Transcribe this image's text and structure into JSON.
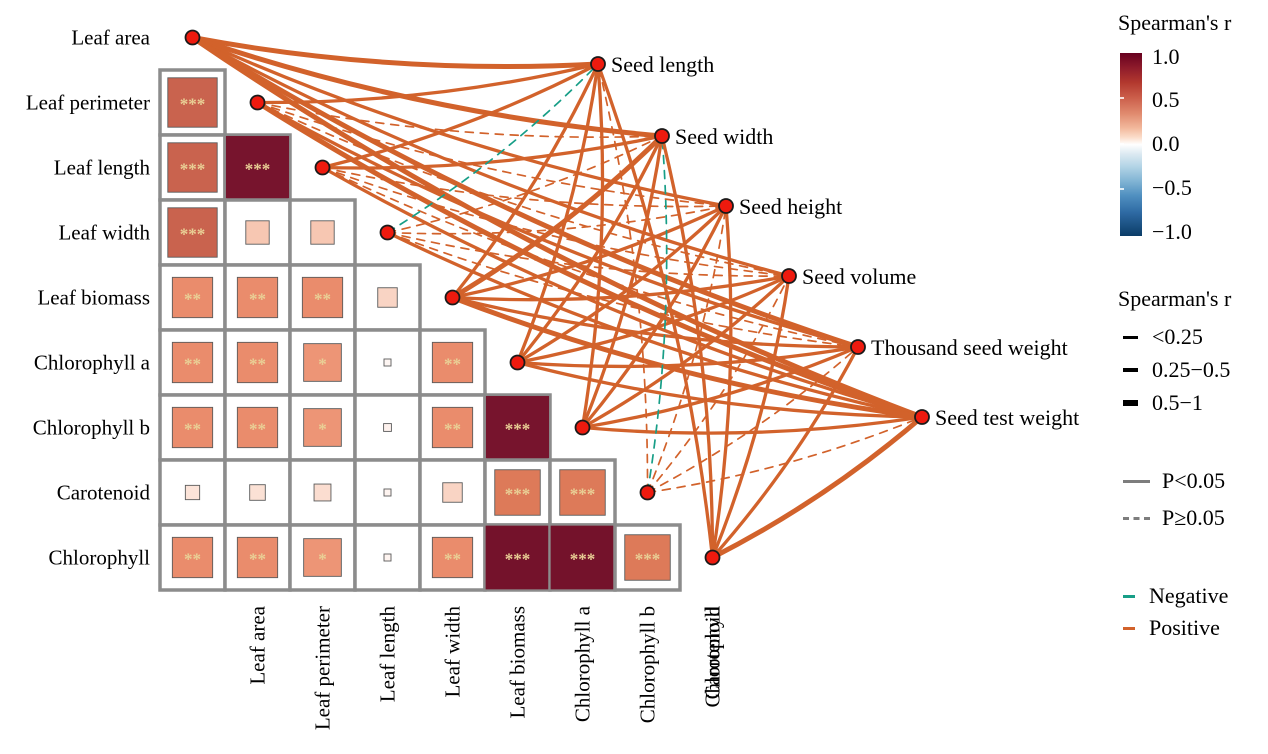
{
  "chart_data": {
    "type": "correlation-heatmap-network",
    "title": "",
    "leaf_traits": [
      "Leaf area",
      "Leaf perimeter",
      "Leaf length",
      "Leaf width",
      "Leaf biomass",
      "Chlorophyll a",
      "Chlorophyll b",
      "Carotenoid",
      "Chlorophyll"
    ],
    "seed_traits": [
      "Seed length",
      "Seed width",
      "Seed height",
      "Seed volume",
      "Thousand seed weight",
      "Seed test weight"
    ],
    "matrix": {
      "rows": [
        {
          "row": "Leaf perimeter",
          "cells": [
            {
              "col": "Leaf area",
              "r": 0.76,
              "sig": "***"
            }
          ]
        },
        {
          "row": "Leaf length",
          "cells": [
            {
              "col": "Leaf area",
              "r": 0.76,
              "sig": "***"
            },
            {
              "col": "Leaf perimeter",
              "r": 0.97,
              "sig": "***"
            }
          ]
        },
        {
          "row": "Leaf width",
          "cells": [
            {
              "col": "Leaf area",
              "r": 0.76,
              "sig": "***"
            },
            {
              "col": "Leaf perimeter",
              "r": 0.36,
              "sig": ""
            },
            {
              "col": "Leaf length",
              "r": 0.36,
              "sig": ""
            }
          ]
        },
        {
          "row": "Leaf biomass",
          "cells": [
            {
              "col": "Leaf area",
              "r": 0.62,
              "sig": "**"
            },
            {
              "col": "Leaf perimeter",
              "r": 0.62,
              "sig": "**"
            },
            {
              "col": "Leaf length",
              "r": 0.62,
              "sig": "**"
            },
            {
              "col": "Leaf width",
              "r": 0.3,
              "sig": ""
            }
          ]
        },
        {
          "row": "Chlorophyll a",
          "cells": [
            {
              "col": "Leaf area",
              "r": 0.62,
              "sig": "**"
            },
            {
              "col": "Leaf perimeter",
              "r": 0.62,
              "sig": "**"
            },
            {
              "col": "Leaf length",
              "r": 0.58,
              "sig": "*"
            },
            {
              "col": "Leaf width",
              "r": 0.08,
              "sig": ""
            },
            {
              "col": "Leaf biomass",
              "r": 0.62,
              "sig": "**"
            }
          ]
        },
        {
          "row": "Chlorophyll b",
          "cells": [
            {
              "col": "Leaf area",
              "r": 0.62,
              "sig": "**"
            },
            {
              "col": "Leaf perimeter",
              "r": 0.62,
              "sig": "**"
            },
            {
              "col": "Leaf length",
              "r": 0.58,
              "sig": "*"
            },
            {
              "col": "Leaf width",
              "r": 0.12,
              "sig": ""
            },
            {
              "col": "Leaf biomass",
              "r": 0.62,
              "sig": "**"
            },
            {
              "col": "Chlorophyll a",
              "r": 0.97,
              "sig": "***"
            }
          ]
        },
        {
          "row": "Carotenoid",
          "cells": [
            {
              "col": "Leaf area",
              "r": 0.22,
              "sig": ""
            },
            {
              "col": "Leaf perimeter",
              "r": 0.24,
              "sig": ""
            },
            {
              "col": "Leaf length",
              "r": 0.26,
              "sig": ""
            },
            {
              "col": "Leaf width",
              "r": 0.1,
              "sig": ""
            },
            {
              "col": "Leaf biomass",
              "r": 0.3,
              "sig": ""
            },
            {
              "col": "Chlorophyll a",
              "r": 0.7,
              "sig": "***"
            },
            {
              "col": "Chlorophyll b",
              "r": 0.7,
              "sig": "***"
            }
          ]
        },
        {
          "row": "Chlorophyll",
          "cells": [
            {
              "col": "Leaf area",
              "r": 0.62,
              "sig": "**"
            },
            {
              "col": "Leaf perimeter",
              "r": 0.62,
              "sig": "**"
            },
            {
              "col": "Leaf length",
              "r": 0.58,
              "sig": "*"
            },
            {
              "col": "Leaf width",
              "r": 0.1,
              "sig": ""
            },
            {
              "col": "Leaf biomass",
              "r": 0.62,
              "sig": "**"
            },
            {
              "col": "Chlorophyll a",
              "r": 0.98,
              "sig": "***"
            },
            {
              "col": "Chlorophyll b",
              "r": 0.98,
              "sig": "***"
            },
            {
              "col": "Carotenoid",
              "r": 0.7,
              "sig": "***"
            }
          ]
        }
      ]
    },
    "links": [
      {
        "leaf": "Leaf area",
        "seed": "Seed length",
        "sign": "pos",
        "p": "sig",
        "width": "thick"
      },
      {
        "leaf": "Leaf area",
        "seed": "Seed width",
        "sign": "pos",
        "p": "sig",
        "width": "thick"
      },
      {
        "leaf": "Leaf area",
        "seed": "Seed height",
        "sign": "pos",
        "p": "sig",
        "width": "medium"
      },
      {
        "leaf": "Leaf area",
        "seed": "Seed volume",
        "sign": "pos",
        "p": "sig",
        "width": "medium"
      },
      {
        "leaf": "Leaf area",
        "seed": "Thousand seed weight",
        "sign": "pos",
        "p": "sig",
        "width": "thick"
      },
      {
        "leaf": "Leaf area",
        "seed": "Seed test weight",
        "sign": "pos",
        "p": "sig",
        "width": "thick"
      },
      {
        "leaf": "Leaf perimeter",
        "seed": "Seed length",
        "sign": "pos",
        "p": "sig",
        "width": "medium"
      },
      {
        "leaf": "Leaf perimeter",
        "seed": "Seed width",
        "sign": "pos",
        "p": "ns",
        "width": "thin"
      },
      {
        "leaf": "Leaf perimeter",
        "seed": "Seed height",
        "sign": "pos",
        "p": "ns",
        "width": "thin"
      },
      {
        "leaf": "Leaf perimeter",
        "seed": "Seed volume",
        "sign": "pos",
        "p": "ns",
        "width": "thin"
      },
      {
        "leaf": "Leaf perimeter",
        "seed": "Thousand seed weight",
        "sign": "pos",
        "p": "sig",
        "width": "medium"
      },
      {
        "leaf": "Leaf perimeter",
        "seed": "Seed test weight",
        "sign": "pos",
        "p": "sig",
        "width": "thick"
      },
      {
        "leaf": "Leaf length",
        "seed": "Seed length",
        "sign": "pos",
        "p": "sig",
        "width": "medium"
      },
      {
        "leaf": "Leaf length",
        "seed": "Seed width",
        "sign": "pos",
        "p": "sig",
        "width": "medium"
      },
      {
        "leaf": "Leaf length",
        "seed": "Seed height",
        "sign": "pos",
        "p": "ns",
        "width": "thin"
      },
      {
        "leaf": "Leaf length",
        "seed": "Seed volume",
        "sign": "pos",
        "p": "ns",
        "width": "thin"
      },
      {
        "leaf": "Leaf length",
        "seed": "Thousand seed weight",
        "sign": "pos",
        "p": "ns",
        "width": "thin"
      },
      {
        "leaf": "Leaf length",
        "seed": "Seed test weight",
        "sign": "pos",
        "p": "sig",
        "width": "medium"
      },
      {
        "leaf": "Leaf width",
        "seed": "Seed length",
        "sign": "neg",
        "p": "ns",
        "width": "thin"
      },
      {
        "leaf": "Leaf width",
        "seed": "Seed width",
        "sign": "pos",
        "p": "ns",
        "width": "thin"
      },
      {
        "leaf": "Leaf width",
        "seed": "Seed height",
        "sign": "pos",
        "p": "ns",
        "width": "thin"
      },
      {
        "leaf": "Leaf width",
        "seed": "Seed volume",
        "sign": "pos",
        "p": "ns",
        "width": "thin"
      },
      {
        "leaf": "Leaf width",
        "seed": "Thousand seed weight",
        "sign": "pos",
        "p": "ns",
        "width": "thin"
      },
      {
        "leaf": "Leaf width",
        "seed": "Seed test weight",
        "sign": "pos",
        "p": "sig",
        "width": "medium"
      },
      {
        "leaf": "Leaf biomass",
        "seed": "Seed length",
        "sign": "pos",
        "p": "sig",
        "width": "medium"
      },
      {
        "leaf": "Leaf biomass",
        "seed": "Seed width",
        "sign": "pos",
        "p": "sig",
        "width": "thick"
      },
      {
        "leaf": "Leaf biomass",
        "seed": "Seed height",
        "sign": "pos",
        "p": "sig",
        "width": "medium"
      },
      {
        "leaf": "Leaf biomass",
        "seed": "Seed volume",
        "sign": "pos",
        "p": "sig",
        "width": "medium"
      },
      {
        "leaf": "Leaf biomass",
        "seed": "Thousand seed weight",
        "sign": "pos",
        "p": "sig",
        "width": "medium"
      },
      {
        "leaf": "Leaf biomass",
        "seed": "Seed test weight",
        "sign": "pos",
        "p": "sig",
        "width": "thick"
      },
      {
        "leaf": "Chlorophyll a",
        "seed": "Seed length",
        "sign": "pos",
        "p": "sig",
        "width": "medium"
      },
      {
        "leaf": "Chlorophyll a",
        "seed": "Seed width",
        "sign": "pos",
        "p": "sig",
        "width": "medium"
      },
      {
        "leaf": "Chlorophyll a",
        "seed": "Seed height",
        "sign": "pos",
        "p": "sig",
        "width": "medium"
      },
      {
        "leaf": "Chlorophyll a",
        "seed": "Seed volume",
        "sign": "pos",
        "p": "sig",
        "width": "medium"
      },
      {
        "leaf": "Chlorophyll a",
        "seed": "Thousand seed weight",
        "sign": "pos",
        "p": "sig",
        "width": "medium"
      },
      {
        "leaf": "Chlorophyll a",
        "seed": "Seed test weight",
        "sign": "pos",
        "p": "sig",
        "width": "medium"
      },
      {
        "leaf": "Chlorophyll b",
        "seed": "Seed length",
        "sign": "pos",
        "p": "sig",
        "width": "medium"
      },
      {
        "leaf": "Chlorophyll b",
        "seed": "Seed width",
        "sign": "pos",
        "p": "sig",
        "width": "medium"
      },
      {
        "leaf": "Chlorophyll b",
        "seed": "Seed height",
        "sign": "pos",
        "p": "sig",
        "width": "medium"
      },
      {
        "leaf": "Chlorophyll b",
        "seed": "Seed volume",
        "sign": "pos",
        "p": "sig",
        "width": "medium"
      },
      {
        "leaf": "Chlorophyll b",
        "seed": "Thousand seed weight",
        "sign": "pos",
        "p": "sig",
        "width": "medium"
      },
      {
        "leaf": "Chlorophyll b",
        "seed": "Seed test weight",
        "sign": "pos",
        "p": "sig",
        "width": "medium"
      },
      {
        "leaf": "Carotenoid",
        "seed": "Seed length",
        "sign": "pos",
        "p": "ns",
        "width": "thin"
      },
      {
        "leaf": "Carotenoid",
        "seed": "Seed width",
        "sign": "neg",
        "p": "ns",
        "width": "thin"
      },
      {
        "leaf": "Carotenoid",
        "seed": "Seed height",
        "sign": "pos",
        "p": "ns",
        "width": "thin"
      },
      {
        "leaf": "Carotenoid",
        "seed": "Seed volume",
        "sign": "pos",
        "p": "ns",
        "width": "thin"
      },
      {
        "leaf": "Carotenoid",
        "seed": "Thousand seed weight",
        "sign": "pos",
        "p": "ns",
        "width": "thin"
      },
      {
        "leaf": "Carotenoid",
        "seed": "Seed test weight",
        "sign": "pos",
        "p": "ns",
        "width": "thin"
      },
      {
        "leaf": "Chlorophyll",
        "seed": "Seed length",
        "sign": "pos",
        "p": "sig",
        "width": "medium"
      },
      {
        "leaf": "Chlorophyll",
        "seed": "Seed width",
        "sign": "pos",
        "p": "sig",
        "width": "medium"
      },
      {
        "leaf": "Chlorophyll",
        "seed": "Seed height",
        "sign": "pos",
        "p": "sig",
        "width": "medium"
      },
      {
        "leaf": "Chlorophyll",
        "seed": "Seed volume",
        "sign": "pos",
        "p": "sig",
        "width": "medium"
      },
      {
        "leaf": "Chlorophyll",
        "seed": "Thousand seed weight",
        "sign": "pos",
        "p": "sig",
        "width": "medium"
      },
      {
        "leaf": "Chlorophyll",
        "seed": "Seed test weight",
        "sign": "pos",
        "p": "sig",
        "width": "thick"
      }
    ]
  },
  "legend": {
    "colorbar": {
      "title": "Spearman's r",
      "ticks": [
        "1.0",
        "0.5",
        "0.0",
        "−0.5",
        "−1.0"
      ]
    },
    "width": {
      "title": "Spearman's r",
      "entries": [
        "<0.25",
        "0.25−0.5",
        "0.5−1"
      ]
    },
    "pvalue": {
      "entries": [
        "P<0.05",
        "P≥0.05"
      ]
    },
    "sign": {
      "entries": [
        "Negative",
        "Positive"
      ]
    }
  },
  "colors": {
    "positive": "#d2622b",
    "negative": "#179e87",
    "node_fill": "#ee1a0e",
    "node_stroke": "#1a1a1a",
    "grid": "#8c8c8c",
    "cell_border": "#5a5a5a",
    "star": "#e9d096",
    "p_line": "#7d7d7d",
    "high_r": "#6d0d28",
    "mid_r": "#ec8d6e",
    "text": "#000000"
  }
}
